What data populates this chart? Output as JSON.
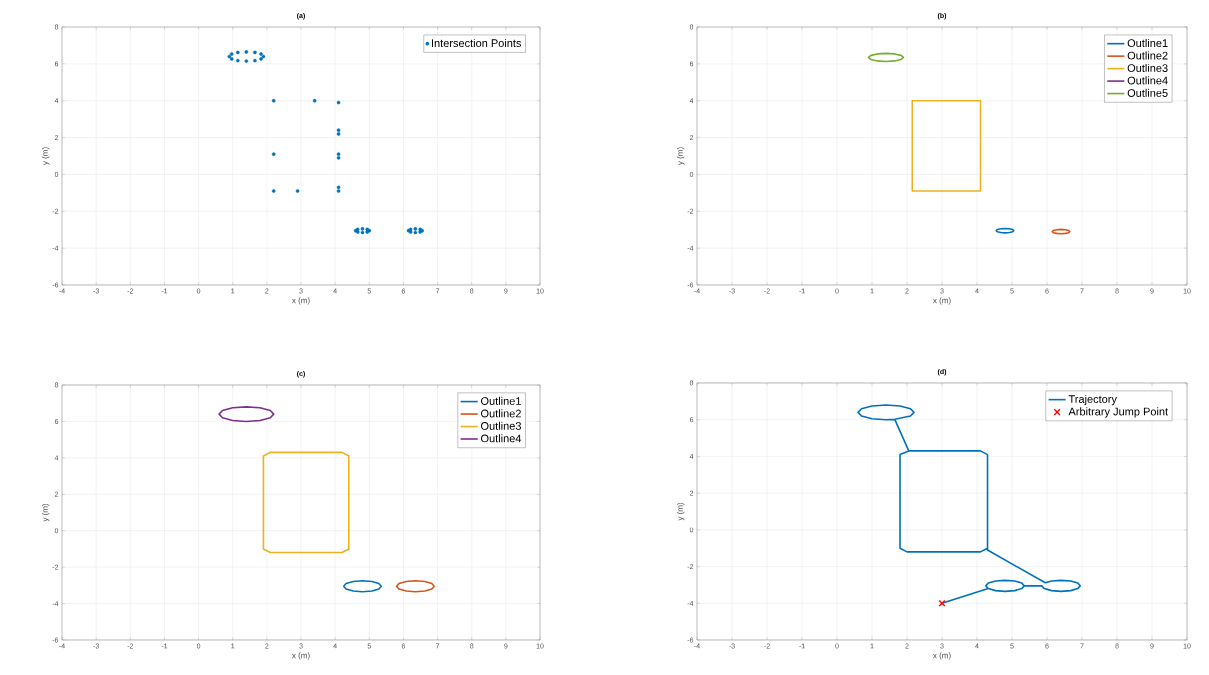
{
  "chart_data": [
    {
      "type": "scatter",
      "title": "(a)",
      "xlabel": "x (m)",
      "ylabel": "y (m)",
      "xlim": [
        -4,
        10
      ],
      "ylim": [
        -6,
        8
      ],
      "xticks": [
        -4,
        -3,
        -2,
        -1,
        0,
        1,
        2,
        3,
        4,
        5,
        6,
        7,
        8,
        9,
        10
      ],
      "yticks": [
        -6,
        -4,
        -2,
        0,
        2,
        4,
        6,
        8
      ],
      "grid": true,
      "legend": "top right",
      "series": [
        {
          "name": "Intersection Points",
          "color": "#0072bd",
          "marker": "circle",
          "x": [
            1.9,
            1.83,
            1.65,
            1.4,
            1.15,
            0.97,
            0.9,
            0.97,
            1.15,
            1.4,
            1.65,
            1.83,
            2.2,
            3.4,
            4.1,
            4.1,
            4.1,
            4.1,
            4.1,
            2.2,
            2.2,
            2.9,
            4.1,
            4.1,
            5.0,
            4.94,
            4.8,
            4.66,
            4.6,
            4.66,
            4.8,
            4.94,
            6.55,
            6.49,
            6.35,
            6.21,
            6.15,
            6.21,
            6.35,
            6.49
          ],
          "values": [
            6.4,
            6.53,
            6.62,
            6.65,
            6.62,
            6.53,
            6.4,
            6.27,
            6.18,
            6.15,
            6.18,
            6.27,
            4.0,
            4.0,
            3.9,
            2.4,
            2.2,
            1.1,
            0.9,
            1.1,
            -0.9,
            -0.9,
            -0.7,
            -0.9,
            -3.05,
            -2.98,
            -2.95,
            -2.98,
            -3.05,
            -3.12,
            -3.15,
            -3.12,
            -3.05,
            -2.98,
            -2.95,
            -2.98,
            -3.05,
            -3.12,
            -3.15,
            -3.12
          ]
        }
      ]
    },
    {
      "type": "line",
      "title": "(b)",
      "xlabel": "x (m)",
      "ylabel": "y (m)",
      "xlim": [
        -4,
        10
      ],
      "ylim": [
        -6,
        8
      ],
      "xticks": [
        -4,
        -3,
        -2,
        -1,
        0,
        1,
        2,
        3,
        4,
        5,
        6,
        7,
        8,
        9,
        10
      ],
      "yticks": [
        -6,
        -4,
        -2,
        0,
        2,
        4,
        6,
        8
      ],
      "grid": true,
      "legend": "top right",
      "line_style": "solid",
      "series": [
        {
          "name": "Outline1",
          "color": "#0072bd",
          "x": [
            5.05,
            5.02,
            4.93,
            4.8,
            4.68,
            4.58,
            4.55,
            4.58,
            4.68,
            4.8,
            4.93,
            5.02,
            5.05,
            5.02
          ],
          "values": [
            -3.05,
            -2.99,
            -2.95,
            -2.93,
            -2.95,
            -2.99,
            -3.05,
            -3.11,
            -3.15,
            -3.17,
            -3.15,
            -3.11,
            -3.05,
            -2.99
          ]
        },
        {
          "name": "Outline2",
          "color": "#d95319",
          "x": [
            6.65,
            6.62,
            6.53,
            6.4,
            6.28,
            6.18,
            6.15,
            6.18,
            6.28,
            6.4,
            6.53,
            6.62,
            6.65,
            6.62
          ],
          "values": [
            -3.1,
            -3.04,
            -3.0,
            -2.98,
            -3.0,
            -3.04,
            -3.1,
            -3.16,
            -3.2,
            -3.22,
            -3.2,
            -3.16,
            -3.1,
            -3.04
          ]
        },
        {
          "name": "Outline3",
          "color": "#edb120",
          "x": [
            2.15,
            4.1,
            4.1,
            2.15,
            2.15,
            4.1
          ],
          "values": [
            4.0,
            4.0,
            -0.9,
            -0.9,
            4.0,
            4.0
          ]
        },
        {
          "name": "Outline4",
          "color": "#7e2f8e"
        },
        {
          "name": "Outline5",
          "color": "#77ac30",
          "x": [
            1.9,
            1.83,
            1.65,
            1.4,
            1.15,
            0.97,
            0.9,
            0.97,
            1.15,
            1.4,
            1.65,
            1.83,
            1.9,
            1.83
          ],
          "values": [
            6.35,
            6.46,
            6.54,
            6.57,
            6.54,
            6.46,
            6.35,
            6.24,
            6.16,
            6.13,
            6.16,
            6.24,
            6.35,
            6.46
          ]
        }
      ]
    },
    {
      "type": "line",
      "title": "(c)",
      "xlabel": "x (m)",
      "ylabel": "y (m)",
      "xlim": [
        -4,
        10
      ],
      "ylim": [
        -6,
        8
      ],
      "xticks": [
        -4,
        -3,
        -2,
        -1,
        0,
        1,
        2,
        3,
        4,
        5,
        6,
        7,
        8,
        9,
        10
      ],
      "yticks": [
        -6,
        -4,
        -2,
        0,
        2,
        4,
        6,
        8
      ],
      "grid": true,
      "legend": "top right",
      "line_style": "solid",
      "series": [
        {
          "name": "Outline1",
          "color": "#0072bd",
          "x": [
            5.35,
            5.28,
            5.08,
            4.8,
            4.53,
            4.32,
            4.25,
            4.32,
            4.53,
            4.8,
            5.08,
            5.28,
            5.35,
            5.28
          ],
          "values": [
            -3.05,
            -2.9,
            -2.79,
            -2.75,
            -2.79,
            -2.9,
            -3.05,
            -3.2,
            -3.31,
            -3.35,
            -3.31,
            -3.2,
            -3.05,
            -2.9
          ]
        },
        {
          "name": "Outline2",
          "color": "#d95319",
          "x": [
            6.9,
            6.83,
            6.63,
            6.35,
            6.08,
            5.87,
            5.8,
            5.87,
            6.08,
            6.35,
            6.63,
            6.83,
            6.9,
            6.83
          ],
          "values": [
            -3.05,
            -2.9,
            -2.79,
            -2.75,
            -2.79,
            -2.9,
            -3.05,
            -3.2,
            -3.31,
            -3.35,
            -3.31,
            -3.2,
            -3.05,
            -2.9
          ]
        },
        {
          "name": "Outline3",
          "color": "#edb120",
          "x": [
            2.1,
            4.2,
            4.4,
            4.4,
            4.2,
            2.1,
            1.9,
            1.9,
            2.1,
            4.2
          ],
          "values": [
            4.3,
            4.3,
            4.1,
            -1.0,
            -1.2,
            -1.2,
            -1.0,
            4.1,
            4.3,
            4.3
          ]
        },
        {
          "name": "Outline4",
          "color": "#7e2f8e",
          "x": [
            2.2,
            2.1,
            1.8,
            1.4,
            1.0,
            0.7,
            0.6,
            0.7,
            1.0,
            1.4,
            1.8,
            2.1,
            2.2,
            2.1
          ],
          "values": [
            6.4,
            6.6,
            6.75,
            6.8,
            6.75,
            6.6,
            6.4,
            6.2,
            6.05,
            6.0,
            6.05,
            6.2,
            6.4,
            6.6
          ]
        }
      ]
    },
    {
      "type": "line",
      "title": "(d)",
      "xlabel": "x (m)",
      "ylabel": "y (m)",
      "xlim": [
        -4,
        10
      ],
      "ylim": [
        -6,
        8
      ],
      "xticks": [
        -4,
        -3,
        -2,
        -1,
        0,
        1,
        2,
        3,
        4,
        5,
        6,
        7,
        8,
        9,
        10
      ],
      "yticks": [
        -6,
        -4,
        -2,
        0,
        2,
        4,
        6,
        8
      ],
      "grid": true,
      "legend": "top right",
      "line_style": "solid",
      "series": [
        {
          "name": "Trajectory",
          "color": "#0072bd",
          "x": [
            1.65,
            2.1,
            2.2,
            2.1,
            1.8,
            1.4,
            1.0,
            0.7,
            0.6,
            0.7,
            1.0,
            1.4,
            1.65,
            2.05,
            4.1,
            4.3,
            4.3,
            4.1,
            2.0,
            1.8,
            1.8,
            2.05,
            4.1,
            4.3,
            4.3,
            5.95,
            6.13,
            6.4,
            6.68,
            6.88,
            6.95,
            6.88,
            6.68,
            6.4,
            6.13,
            5.92,
            5.85,
            5.35,
            5.28,
            5.08,
            4.8,
            4.53,
            4.32,
            4.25,
            4.32,
            4.53,
            4.8,
            5.08,
            5.28,
            5.35,
            5.28,
            5.08,
            4.8,
            4.53,
            4.32,
            3.0
          ],
          "values": [
            6.02,
            6.2,
            6.4,
            6.6,
            6.75,
            6.8,
            6.75,
            6.6,
            6.4,
            6.2,
            6.05,
            6.0,
            6.02,
            4.3,
            4.3,
            4.1,
            -1.0,
            -1.2,
            -1.2,
            -1.0,
            4.1,
            4.3,
            4.3,
            4.1,
            -1.1,
            -2.88,
            -2.79,
            -2.75,
            -2.79,
            -2.9,
            -3.05,
            -3.2,
            -3.31,
            -3.35,
            -3.31,
            -3.2,
            -3.05,
            -3.05,
            -3.2,
            -3.31,
            -3.35,
            -3.31,
            -3.2,
            -3.05,
            -2.9,
            -2.79,
            -2.75,
            -2.79,
            -2.9,
            -3.05,
            -3.2,
            -3.31,
            -3.35,
            -3.31,
            -3.2,
            -4.0
          ]
        },
        {
          "name": "Arbitrary Jump Point",
          "type": "scatter",
          "marker": "cross",
          "color": "#ff0000",
          "x": [
            3.0
          ],
          "values": [
            -4.0
          ]
        }
      ]
    }
  ]
}
